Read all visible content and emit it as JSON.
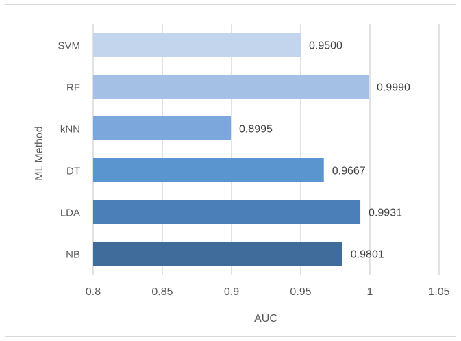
{
  "chart_data": {
    "type": "bar",
    "orientation": "horizontal",
    "categories": [
      "SVM",
      "RF",
      "kNN",
      "DT",
      "LDA",
      "NB"
    ],
    "values": [
      0.95,
      0.999,
      0.8995,
      0.9667,
      0.9931,
      0.9801
    ],
    "data_labels": [
      "0.9500",
      "0.9990",
      "0.8995",
      "0.9667",
      "0.9931",
      "0.9801"
    ],
    "bar_colors": [
      "#c3d5ec",
      "#a5c0e5",
      "#7ba7dc",
      "#5b95d0",
      "#4b7fb7",
      "#3f6c9a"
    ],
    "xlabel": "AUC",
    "ylabel": "ML Method",
    "xlim": [
      0.8,
      1.05
    ],
    "x_ticks": [
      0.8,
      0.85,
      0.9,
      0.95,
      1,
      1.05
    ],
    "x_tick_labels": [
      "0.8",
      "0.85",
      "0.9",
      "0.95",
      "1",
      "1.05"
    ],
    "grid": "vertical",
    "legend": "none"
  }
}
